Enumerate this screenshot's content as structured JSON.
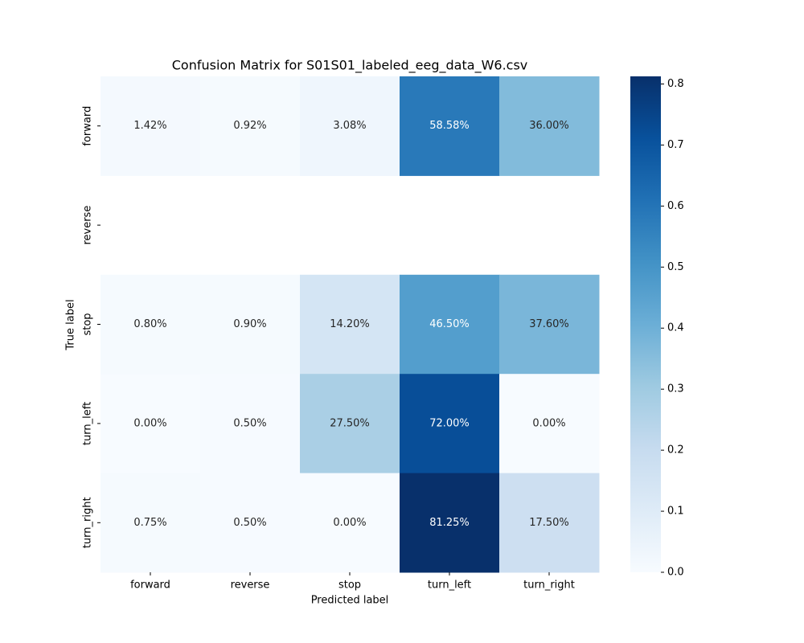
{
  "chart_data": {
    "type": "heatmap",
    "title": "Confusion Matrix for S01S01_labeled_eeg_data_W6.csv",
    "x_label": "Predicted label",
    "y_label": "True label",
    "x_categories": [
      "forward",
      "reverse",
      "stop",
      "turn_left",
      "turn_right"
    ],
    "y_categories": [
      "forward",
      "reverse",
      "stop",
      "turn_left",
      "turn_right"
    ],
    "values": [
      [
        0.0142,
        0.0092,
        0.0308,
        0.5858,
        0.36
      ],
      [
        null,
        null,
        null,
        null,
        null
      ],
      [
        0.008,
        0.009,
        0.142,
        0.465,
        0.376
      ],
      [
        0,
        0.005,
        0.275,
        0.72,
        0
      ],
      [
        0.0075,
        0.005,
        0,
        0.8125,
        0.175
      ]
    ],
    "value_labels": [
      [
        "1.42%",
        "0.92%",
        "3.08%",
        "58.58%",
        "36.00%"
      ],
      [
        null,
        null,
        null,
        null,
        null
      ],
      [
        "0.80%",
        "0.90%",
        "14.20%",
        "46.50%",
        "37.60%"
      ],
      [
        "0.00%",
        "0.50%",
        "27.50%",
        "72.00%",
        "0.00%"
      ],
      [
        "0.75%",
        "0.50%",
        "0.00%",
        "81.25%",
        "17.50%"
      ]
    ],
    "colormap": "Blues",
    "clim": [
      0,
      0.8125
    ],
    "cticks": [
      {
        "value": 0,
        "label": "0.0"
      },
      0.1,
      0.2,
      0.3,
      0.4,
      0.5,
      0.6,
      0.7,
      0.8
    ]
  }
}
